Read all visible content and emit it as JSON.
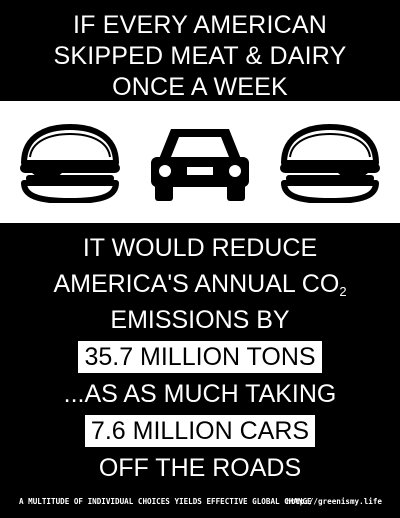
{
  "headline": {
    "line1": "IF EVERY AMERICAN",
    "line2": "SKIPPED MEAT & DAIRY",
    "line3": "ONCE A WEEK"
  },
  "icons": {
    "left": "burger-icon",
    "center": "car-icon",
    "right": "burger-icon"
  },
  "body": {
    "line1": "IT WOULD REDUCE",
    "line2_main": "AMERICA'S ANNUAL CO",
    "line2_sub": "2",
    "line3": "EMISSIONS BY",
    "highlight1": "35.7 MILLION TONS",
    "line4": "...AS AS MUCH TAKING",
    "highlight2": "7.6 MILLION CARS",
    "line5": "OFF THE ROADS"
  },
  "footer": {
    "tagline": "A MULTITUDE OF INDIVIDUAL CHOICES YIELDS EFFECTIVE GLOBAL CHANGE",
    "url": "http://greenismy.life"
  },
  "colors": {
    "background": "#000000",
    "band": "#ffffff",
    "text": "#ffffff",
    "highlight_text": "#000000"
  }
}
